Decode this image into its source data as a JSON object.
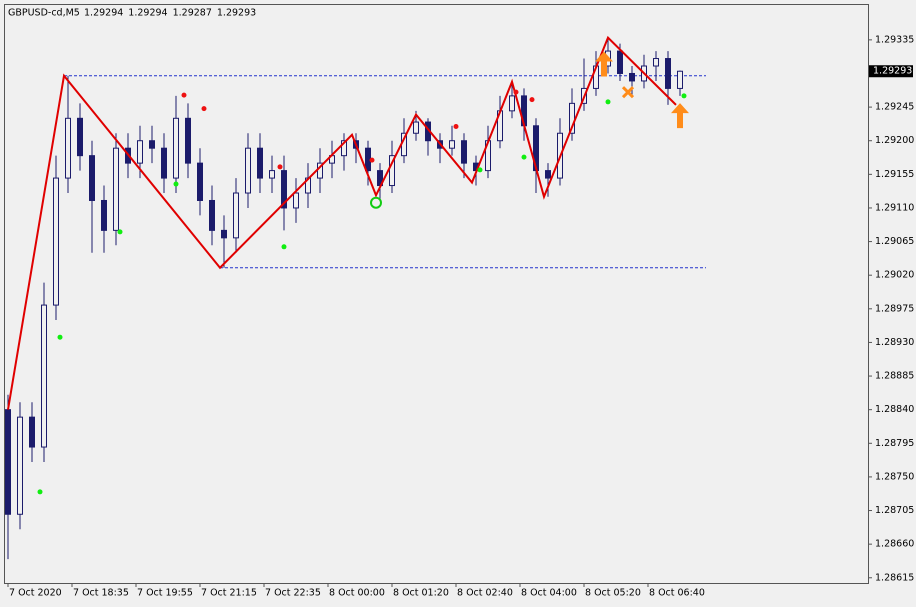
{
  "chart_data": {
    "type": "candlestick",
    "symbol": "GBPUSD-cd,M5",
    "header_values": [
      1.29294,
      1.29294,
      1.29287,
      1.29293
    ],
    "current_price": 1.29293,
    "color": "#1b1b6b",
    "x": [
      0,
      3,
      6,
      9,
      12,
      15,
      18,
      21,
      24,
      27,
      30,
      33,
      36,
      39,
      42,
      45,
      48,
      51,
      54,
      57,
      60,
      63,
      66,
      69,
      72,
      75,
      78,
      81,
      84,
      87,
      90,
      93,
      96,
      99,
      102,
      105,
      108,
      111,
      114,
      117,
      120,
      123,
      126,
      129,
      132,
      135,
      138,
      141,
      144,
      147,
      150,
      153,
      156,
      159,
      162,
      165,
      168
    ],
    "open": [
      1.2884,
      1.287,
      1.2883,
      1.2879,
      1.2898,
      1.2915,
      1.2923,
      1.2918,
      1.2912,
      1.2908,
      1.2919,
      1.2917,
      1.292,
      1.2919,
      1.2915,
      1.2923,
      1.2917,
      1.2912,
      1.2908,
      1.2907,
      1.2913,
      1.2919,
      1.2915,
      1.2916,
      1.2911,
      1.2913,
      1.2915,
      1.2917,
      1.2918,
      1.292,
      1.2919,
      1.2916,
      1.2914,
      1.2918,
      1.2921,
      1.29225,
      1.292,
      1.2919,
      1.292,
      1.2917,
      1.2916,
      1.292,
      1.2924,
      1.2926,
      1.2922,
      1.2916,
      1.2915,
      1.2921,
      1.2925,
      1.2927,
      1.293,
      1.2932,
      1.2929,
      1.2928,
      1.293,
      1.2931,
      1.2927
    ],
    "high": [
      1.2886,
      1.2885,
      1.2885,
      1.2901,
      1.2918,
      1.29287,
      1.2925,
      1.292,
      1.2914,
      1.2921,
      1.2921,
      1.2922,
      1.2922,
      1.2921,
      1.2926,
      1.2925,
      1.2919,
      1.2914,
      1.291,
      1.2915,
      1.2921,
      1.2921,
      1.2918,
      1.2918,
      1.2915,
      1.2917,
      1.2919,
      1.292,
      1.2921,
      1.2921,
      1.292,
      1.2917,
      1.292,
      1.2923,
      1.2924,
      1.2923,
      1.2921,
      1.2922,
      1.2921,
      1.2918,
      1.2922,
      1.2926,
      1.2928,
      1.2927,
      1.2923,
      1.2917,
      1.2923,
      1.2927,
      1.2931,
      1.2932,
      1.29338,
      1.2933,
      1.293,
      1.29315,
      1.2932,
      1.2932,
      1.29294
    ],
    "low": [
      1.2864,
      1.2868,
      1.2877,
      1.2877,
      1.2896,
      1.2913,
      1.2916,
      1.2905,
      1.2905,
      1.2906,
      1.2915,
      1.2915,
      1.2917,
      1.2913,
      1.2913,
      1.2915,
      1.291,
      1.2906,
      1.2903,
      1.2905,
      1.2911,
      1.2913,
      1.2913,
      1.2908,
      1.2909,
      1.2911,
      1.2913,
      1.2915,
      1.2916,
      1.2917,
      1.2914,
      1.2912,
      1.2913,
      1.2917,
      1.292,
      1.2918,
      1.2917,
      1.2918,
      1.2915,
      1.2914,
      1.2915,
      1.2919,
      1.2923,
      1.292,
      1.2913,
      1.29125,
      1.2914,
      1.292,
      1.2924,
      1.2926,
      1.2929,
      1.2928,
      1.2926,
      1.2927,
      1.2928,
      1.29248,
      1.2926
    ],
    "close": [
      1.287,
      1.2883,
      1.2879,
      1.2898,
      1.2915,
      1.2923,
      1.2918,
      1.2912,
      1.2908,
      1.2919,
      1.2917,
      1.292,
      1.2919,
      1.2915,
      1.2923,
      1.2917,
      1.2912,
      1.2908,
      1.2907,
      1.2913,
      1.2919,
      1.2915,
      1.2916,
      1.2911,
      1.2913,
      1.2915,
      1.2917,
      1.2918,
      1.292,
      1.2919,
      1.2916,
      1.2914,
      1.2918,
      1.2921,
      1.29225,
      1.292,
      1.2919,
      1.292,
      1.2917,
      1.2916,
      1.292,
      1.2924,
      1.2926,
      1.2922,
      1.2916,
      1.2915,
      1.2921,
      1.2925,
      1.2927,
      1.293,
      1.2932,
      1.2929,
      1.2928,
      1.293,
      1.2931,
      1.2927,
      1.29293
    ],
    "zigzag": {
      "color": "#e00000",
      "x": [
        0,
        14,
        53,
        86,
        92,
        102,
        116,
        126,
        134,
        150,
        167
      ],
      "values": [
        1.2884,
        1.29287,
        1.2903,
        1.29208,
        1.29127,
        1.29235,
        1.29144,
        1.29279,
        1.29125,
        1.29338,
        1.29248
      ]
    },
    "levels": {
      "color": "#2233cc",
      "x": [
        14,
        53
      ],
      "values": [
        1.29287,
        1.2903
      ]
    },
    "up_markers": {
      "color": "#ee1111",
      "x": [
        44,
        49,
        68,
        91,
        112,
        127,
        131
      ],
      "values": [
        1.29261,
        1.29243,
        1.29165,
        1.29174,
        1.29219,
        1.29265,
        1.29255
      ]
    },
    "down_markers": {
      "color": "#11ee11",
      "x": [
        8,
        13,
        28,
        42,
        69,
        118,
        129,
        150,
        169
      ],
      "values": [
        1.2873,
        1.28937,
        1.29078,
        1.29142,
        1.29058,
        1.29161,
        1.29178,
        1.29252,
        1.2926
      ]
    },
    "circle_marker": {
      "color": "#11cc11",
      "x": 92,
      "value": 1.29117
    },
    "arrows": {
      "color": "#ff8c1a",
      "x": [
        149,
        168
      ],
      "values": [
        1.29302,
        1.29233
      ]
    },
    "cross": {
      "color": "#ff8c1a",
      "x": 155,
      "value": 1.29265
    },
    "xlim": [
      -1,
      215
    ],
    "ylim": [
      1.28608,
      1.29383
    ],
    "xticks": [
      {
        "value": 0,
        "label": "7 Oct 2020"
      },
      {
        "value": 16,
        "label": "7 Oct 18:35"
      },
      {
        "value": 32,
        "label": "7 Oct 19:55"
      },
      {
        "value": 48,
        "label": "7 Oct 21:15"
      },
      {
        "value": 64,
        "label": "7 Oct 22:35"
      },
      {
        "value": 80,
        "label": "8 Oct 00:00"
      },
      {
        "value": 96,
        "label": "8 Oct 01:20"
      },
      {
        "value": 112,
        "label": "8 Oct 02:40"
      },
      {
        "value": 128,
        "label": "8 Oct 04:00"
      },
      {
        "value": 144,
        "label": "8 Oct 05:20"
      },
      {
        "value": 160,
        "label": "8 Oct 06:40"
      }
    ],
    "yticks": [
      1.29335,
      1.29245,
      {
        "value": 1.292,
        "label": "1.29200"
      },
      1.29155,
      {
        "value": 1.2911,
        "label": "1.29110"
      },
      1.29065,
      {
        "value": 1.2902,
        "label": "1.29020"
      },
      1.28975,
      {
        "value": 1.2893,
        "label": "1.28930"
      },
      1.28885,
      {
        "value": 1.2884,
        "label": "1.28840"
      },
      1.28795,
      {
        "value": 1.2875,
        "label": "1.28750"
      },
      1.28705,
      {
        "value": 1.2866,
        "label": "1.28660"
      },
      1.28615
    ]
  }
}
